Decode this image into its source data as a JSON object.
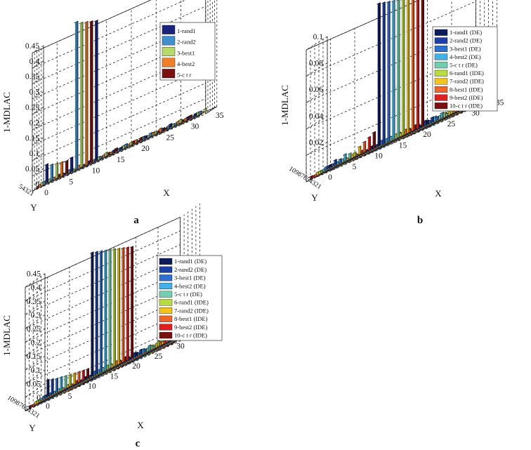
{
  "chart_data": [
    {
      "type": "bar",
      "panel": "a",
      "zlabel": "1-MDLAC",
      "xlabel": "X",
      "ylabel": "Y",
      "zlim": [
        0,
        0.45
      ],
      "z_ticks": [
        "0",
        "0.05",
        "0.1",
        "0.15",
        "0.2",
        "0.25",
        "0.3",
        "0.35",
        "0.4",
        "0.45"
      ],
      "x_ticks": [
        "0",
        "5",
        "10",
        "15",
        "20",
        "25",
        "30",
        "35"
      ],
      "y_ticks": [
        "1",
        "2",
        "3",
        "4",
        "5"
      ],
      "y_ticks_label": "54321",
      "grid": true,
      "legend_position": "top-right",
      "series": [
        {
          "name": "1-rand1",
          "color": "#1a237e"
        },
        {
          "name": "2-rand2",
          "color": "#3f8fcf"
        },
        {
          "name": "3-best1",
          "color": "#b5d96a"
        },
        {
          "name": "4-best2",
          "color": "#f07d28"
        },
        {
          "name": "5-c t r",
          "color": "#7a1010"
        }
      ],
      "front_row_values": [
        0.06,
        0.052,
        0.048,
        0.045,
        0.042,
        0.046,
        0.48,
        0.47,
        0.465,
        0.46,
        0.455
      ]
    },
    {
      "type": "bar",
      "panel": "b",
      "zlabel": "1-MDLAC",
      "xlabel": "X",
      "ylabel": "Y",
      "zlim": [
        0,
        0.1
      ],
      "z_ticks": [
        "0.02",
        "0.04",
        "0.06",
        "0.08",
        "0.1"
      ],
      "x_ticks": [
        "0",
        "5",
        "10",
        "15",
        "20",
        "25",
        "30",
        "35"
      ],
      "y_ticks_label": "10987654321",
      "grid": true,
      "legend_position": "top-right",
      "series": [
        {
          "name": "1-rand1 (DE)",
          "color": "#0d1a5c"
        },
        {
          "name": "2-rand2 (DE)",
          "color": "#1d3fa6"
        },
        {
          "name": "3-best1 (DE)",
          "color": "#2f6fd0"
        },
        {
          "name": "4-best2 (DE)",
          "color": "#3fb2e8"
        },
        {
          "name": "5-c t r (DE)",
          "color": "#6fcfae"
        },
        {
          "name": "6-rand1 (IDE)",
          "color": "#b9dc3e"
        },
        {
          "name": "7-rand2 (IDE)",
          "color": "#f4c41c"
        },
        {
          "name": "8-best1 (IDE)",
          "color": "#f0662a"
        },
        {
          "name": "9-best2 (IDE)",
          "color": "#e02020"
        },
        {
          "name": "10-c t r (IDE)",
          "color": "#7a1010"
        }
      ],
      "front_row_values": [
        0.002,
        0.004,
        0.003,
        0.005,
        0.004,
        0.003,
        0.006,
        0.008,
        0.01,
        0.012,
        0.108,
        0.107,
        0.106,
        0.105,
        0.104,
        0.103,
        0.102,
        0.101,
        0.1,
        0.099
      ]
    },
    {
      "type": "bar",
      "panel": "c",
      "zlabel": "1-MDLAC",
      "xlabel": "X",
      "ylabel": "Y",
      "zlim": [
        0,
        0.45
      ],
      "z_ticks": [
        "0",
        "0.05",
        "0.1",
        "0.15",
        "0.2",
        "0.25",
        "0.3",
        "0.35",
        "0.4",
        "0.45"
      ],
      "x_ticks": [
        "0",
        "5",
        "10",
        "15",
        "20",
        "25",
        "30",
        "35"
      ],
      "y_ticks_label": "10987654321",
      "grid": true,
      "legend_position": "top-right",
      "series": [
        {
          "name": "1-rand1 (DE)",
          "color": "#0d1a5c"
        },
        {
          "name": "2-rand2 (DE)",
          "color": "#1d3fa6"
        },
        {
          "name": "3-best1 (DE)",
          "color": "#2f6fd0"
        },
        {
          "name": "4-best2 (DE)",
          "color": "#3fb2e8"
        },
        {
          "name": "5-c t r (DE)",
          "color": "#6fcfae"
        },
        {
          "name": "6-rand1 (IDE)",
          "color": "#b9dc3e"
        },
        {
          "name": "7-rand2 (IDE)",
          "color": "#f4c41c"
        },
        {
          "name": "8-best1 (IDE)",
          "color": "#f0662a"
        },
        {
          "name": "9-best2 (IDE)",
          "color": "#e02020"
        },
        {
          "name": "10-c t r (IDE)",
          "color": "#7a1010"
        }
      ],
      "front_row_values": [
        0.06,
        0.055,
        0.05,
        0.048,
        0.045,
        0.042,
        0.04,
        0.038,
        0.036,
        0.034,
        0.45,
        0.445,
        0.44,
        0.435,
        0.43,
        0.425,
        0.42,
        0.415,
        0.41,
        0.405
      ]
    }
  ]
}
